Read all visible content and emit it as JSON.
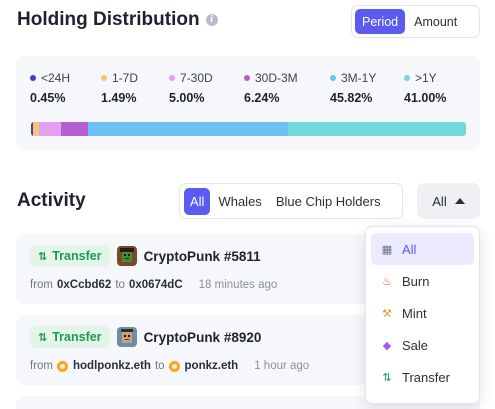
{
  "header": {
    "title": "Holding Distribution",
    "info_glyph": "i",
    "toggle": [
      {
        "label": "Period",
        "active": true
      },
      {
        "label": "Amount",
        "active": false
      }
    ]
  },
  "distribution": {
    "buckets": [
      {
        "label": "<24H",
        "pct": "0.45%",
        "value": 0.45,
        "color": "#3a3fd6"
      },
      {
        "label": "1-7D",
        "pct": "1.49%",
        "value": 1.49,
        "color": "#f5c76a"
      },
      {
        "label": "7-30D",
        "pct": "5.00%",
        "value": 5.0,
        "color": "#e3a0f0"
      },
      {
        "label": "30D-3M",
        "pct": "6.24%",
        "value": 6.24,
        "color": "#b45fd1"
      },
      {
        "label": "3M-1Y",
        "pct": "45.82%",
        "value": 45.82,
        "color": "#6cc0f2"
      },
      {
        "label": ">1Y",
        "pct": "41.00%",
        "value": 41.0,
        "color": "#72d9dc"
      }
    ]
  },
  "activity": {
    "title": "Activity",
    "filters": [
      {
        "label": "All",
        "active": true
      },
      {
        "label": "Whales",
        "active": false
      },
      {
        "label": "Blue Chip Holders",
        "active": false
      }
    ],
    "dropdown": {
      "label": "All",
      "icon": "caret-up-icon"
    },
    "rows": [
      {
        "type": "Transfer",
        "type_glyph": "⇅",
        "nft": "CryptoPunk #5811",
        "from_label": "from",
        "from": "0xCcbd62",
        "to_label": "to",
        "to": "0x0674dC",
        "time": "18 minutes ago",
        "from_ens": false,
        "to_ens": false
      },
      {
        "type": "Transfer",
        "type_glyph": "⇅",
        "nft": "CryptoPunk #8920",
        "from_label": "from",
        "from": "hodlponkz.eth",
        "to_label": "to",
        "to": "ponkz.eth",
        "time": "1 hour ago",
        "from_ens": true,
        "to_ens": true
      }
    ]
  },
  "menu": {
    "items": [
      {
        "label": "All",
        "icon": "grid-icon",
        "glyph": "▦",
        "color": "#6b7080",
        "active": true
      },
      {
        "label": "Burn",
        "icon": "flame-icon",
        "glyph": "♨",
        "color": "#e0623a",
        "active": false
      },
      {
        "label": "Mint",
        "icon": "hammer-icon",
        "glyph": "⚒",
        "color": "#e89a2c",
        "active": false
      },
      {
        "label": "Sale",
        "icon": "tag-icon",
        "glyph": "◆",
        "color": "#a05cf0",
        "active": false
      },
      {
        "label": "Transfer",
        "icon": "transfer-icon",
        "glyph": "⇅",
        "color": "#1f9a52",
        "active": false
      }
    ]
  }
}
